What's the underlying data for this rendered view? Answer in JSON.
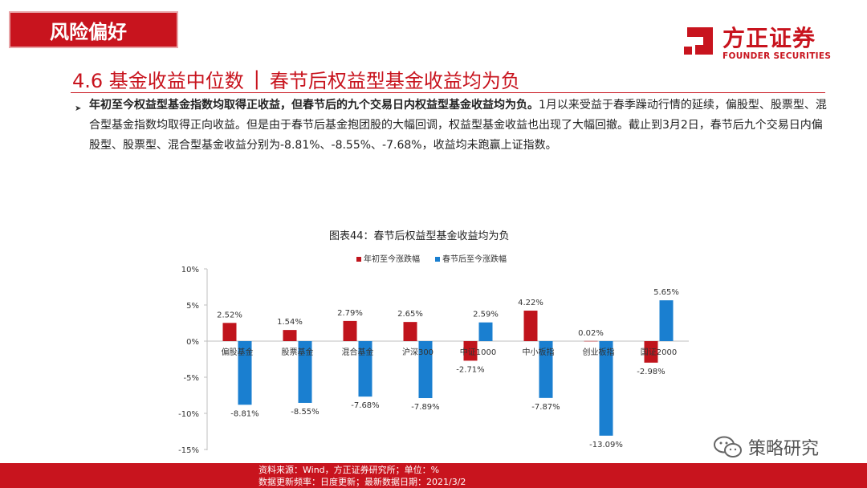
{
  "header": {
    "section_tag": "风险偏好",
    "logo_cn": "方正证券",
    "logo_en": "FOUNDER SECURITIES"
  },
  "title": {
    "number_label": "4.6 基金收益中位数",
    "separator": "|",
    "subtitle": "春节后权益型基金收益均为负"
  },
  "paragraph": {
    "bold": "年初至今权益型基金指数均取得正收益，但春节后的九个交易日内权益型基金收益均为负。",
    "rest": "1月以来受益于春季躁动行情的延续，偏股型、股票型、混合型基金指数均取得正向收益。但是由于春节后基金抱团股的大幅回调，权益型基金收益也出现了大幅回撤。截止到3月2日，春节后九个交易日内偏股型、股票型、混合型基金收益分别为-8.81%、-8.55%、-7.68%，收益均未跑赢上证指数。"
  },
  "chart_caption": "图表44：春节后权益型基金收益均为负",
  "chart_data": {
    "type": "bar",
    "categories": [
      "偏股基金",
      "股票基金",
      "混合基金",
      "沪深300",
      "中证1000",
      "中小板指",
      "创业板指",
      "国证2000"
    ],
    "series": [
      {
        "name": "年初至今涨跌幅",
        "values": [
          2.52,
          1.54,
          2.79,
          2.65,
          -2.71,
          4.22,
          0.02,
          -2.98
        ],
        "color": "#c0141c"
      },
      {
        "name": "春节后至今涨跌幅",
        "values": [
          -8.81,
          -8.55,
          -7.68,
          -7.89,
          2.59,
          -7.87,
          -13.09,
          5.65
        ],
        "color": "#1a7fd0"
      }
    ],
    "data_labels": [
      [
        "2.52%",
        "1.54%",
        "2.79%",
        "2.65%",
        "-2.71%",
        "4.22%",
        "0.02%",
        "-2.98%"
      ],
      [
        "-8.81%",
        "-8.55%",
        "-7.68%",
        "-7.89%",
        "2.59%",
        "-7.87%",
        "-13.09%",
        "5.65%"
      ]
    ],
    "yticks": [
      "10%",
      "5%",
      "0%",
      "-5%",
      "-10%",
      "-15%"
    ],
    "ytick_values": [
      10,
      5,
      0,
      -5,
      -10,
      -15
    ],
    "ylim": [
      -15,
      10
    ],
    "grid": false,
    "legend_position": "top-center"
  },
  "footer": {
    "source": "资料来源：Wind，方正证券研究所；单位：%",
    "update": "数据更新频率：日度更新；最新数据日期：2021/3/2"
  },
  "watermark": {
    "text": "策略研究",
    "icon": "wechat-icon"
  },
  "colors": {
    "brand_red": "#c8141e",
    "bar_red": "#c0141c",
    "bar_blue": "#1a7fd0"
  }
}
